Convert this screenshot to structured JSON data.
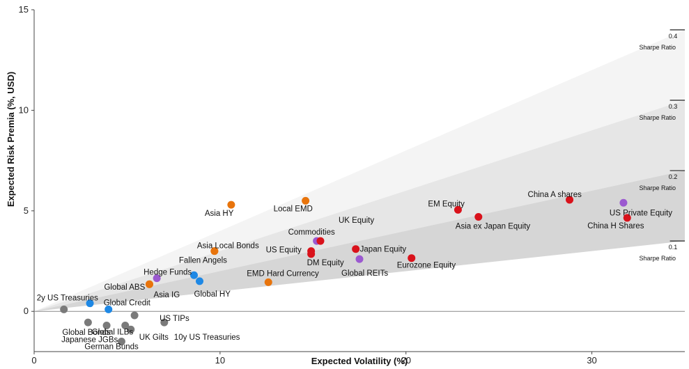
{
  "chart_data": {
    "type": "scatter",
    "title": "",
    "xlabel": "Expected Volatility (%)",
    "ylabel": "Expected Risk Premia (%, USD)",
    "xlim": [
      0,
      35
    ],
    "ylim": [
      -2,
      15
    ],
    "xticks": [
      "0",
      "10",
      "20",
      "30"
    ],
    "yticks": [
      "0",
      "5",
      "10",
      "15"
    ],
    "grid": false,
    "colors": {
      "gray": "#7a7a7a",
      "blue": "#1e88e5",
      "orange": "#e8740c",
      "red": "#d9121b",
      "purple": "#9b59d0"
    },
    "sharpe_bands": [
      {
        "ratio": "0.4",
        "caption": "Sharpe Ratio",
        "slope": 0.4,
        "fill": "#f4f4f4"
      },
      {
        "ratio": "0.3",
        "caption": "Sharpe Ratio",
        "slope": 0.3,
        "fill": "#e6e6e6"
      },
      {
        "ratio": "0.2",
        "caption": "Sharpe Ratio",
        "slope": 0.2,
        "fill": "#d6d6d6"
      },
      {
        "ratio": "0.1",
        "caption": "Sharpe Ratio",
        "slope": 0.1,
        "fill": "#ffffff"
      }
    ],
    "points": [
      {
        "label": "2y US Treasuries",
        "x": 1.6,
        "y": 0.1,
        "color": "gray"
      },
      {
        "label": "Global Bonds",
        "x": 2.9,
        "y": -0.55,
        "color": "gray"
      },
      {
        "label": "Japanese JGBs",
        "x": 3.9,
        "y": -0.7,
        "color": "gray"
      },
      {
        "label": "German Bunds",
        "x": 4.7,
        "y": -1.5,
        "color": "gray"
      },
      {
        "label": "Global ILBs",
        "x": 4.9,
        "y": -0.7,
        "color": "gray"
      },
      {
        "label": "UK Gilts",
        "x": 5.2,
        "y": -0.9,
        "color": "gray"
      },
      {
        "label": "US TIPs",
        "x": 5.4,
        "y": -0.2,
        "color": "gray"
      },
      {
        "label": "10y US Treasuries",
        "x": 7.0,
        "y": -0.55,
        "color": "gray"
      },
      {
        "label": "",
        "x": 3.0,
        "y": 0.4,
        "color": "blue"
      },
      {
        "label": "Global Credit",
        "x": 4.0,
        "y": 0.1,
        "color": "blue"
      },
      {
        "label": "",
        "x": 8.6,
        "y": 1.8,
        "color": "blue"
      },
      {
        "label": "Global HY",
        "x": 8.9,
        "y": 1.5,
        "color": "blue"
      },
      {
        "label": "Global ABS",
        "x": 6.2,
        "y": 1.35,
        "color": "orange"
      },
      {
        "label": "Asia IG",
        "x": 6.2,
        "y": 1.35,
        "color": "orange"
      },
      {
        "label": "Asia HY",
        "x": 10.6,
        "y": 5.3,
        "color": "orange"
      },
      {
        "label": "Asia Local Bonds",
        "x": 9.7,
        "y": 3.0,
        "color": "orange"
      },
      {
        "label": "Fallen Angels",
        "x": 9.7,
        "y": 3.0,
        "color": "orange"
      },
      {
        "label": "Local EMD",
        "x": 14.6,
        "y": 5.5,
        "color": "orange"
      },
      {
        "label": "EMD Hard Currency",
        "x": 12.6,
        "y": 1.45,
        "color": "orange"
      },
      {
        "label": "Hedge Funds",
        "x": 6.6,
        "y": 1.65,
        "color": "purple"
      },
      {
        "label": "Commodities",
        "x": 15.2,
        "y": 3.5,
        "color": "purple"
      },
      {
        "label": "Global REITs",
        "x": 17.5,
        "y": 2.6,
        "color": "purple"
      },
      {
        "label": "US Private Equity",
        "x": 31.7,
        "y": 5.4,
        "color": "purple"
      },
      {
        "label": "US Equity",
        "x": 14.9,
        "y": 3.0,
        "color": "red"
      },
      {
        "label": "DM Equity",
        "x": 14.9,
        "y": 2.85,
        "color": "red"
      },
      {
        "label": "UK Equity",
        "x": 15.4,
        "y": 3.5,
        "color": "red"
      },
      {
        "label": "Japan Equity",
        "x": 17.3,
        "y": 3.1,
        "color": "red"
      },
      {
        "label": "Eurozone Equity",
        "x": 20.3,
        "y": 2.65,
        "color": "red"
      },
      {
        "label": "EM Equity",
        "x": 22.8,
        "y": 5.05,
        "color": "red"
      },
      {
        "label": "Asia ex Japan Equity",
        "x": 23.9,
        "y": 4.7,
        "color": "red"
      },
      {
        "label": "China A shares",
        "x": 28.8,
        "y": 5.55,
        "color": "red"
      },
      {
        "label": "China H Shares",
        "x": 31.9,
        "y": 4.65,
        "color": "red"
      }
    ]
  }
}
